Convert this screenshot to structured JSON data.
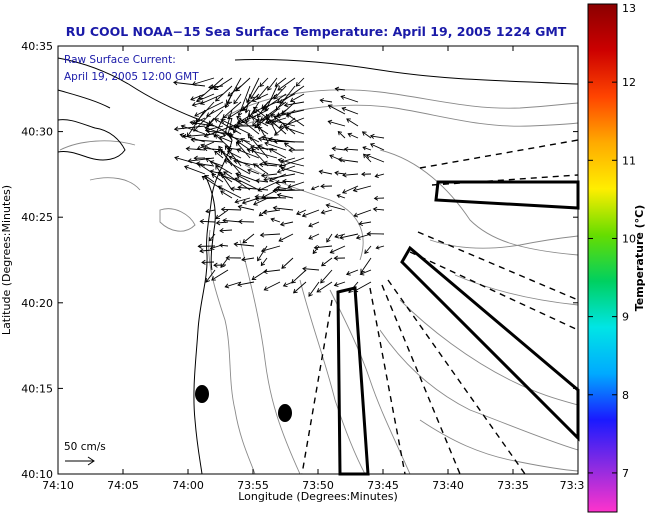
{
  "title": "RU COOL  NOAA−15  Sea Surface Temperature:  April 19, 2005 1224 GMT",
  "annotation": {
    "line1": "Raw Surface Current:",
    "line2": "April 19, 2005 12:00 GMT"
  },
  "scale_label": "50 cm/s",
  "x_axis": {
    "label": "Longitude (Degrees:Minutes)",
    "ticks": [
      "74:10",
      "74:05",
      "74:00",
      "73:55",
      "73:50",
      "73:45",
      "73:40",
      "73:35",
      "73:3"
    ]
  },
  "y_axis": {
    "label": "Latitude (Degrees:Minutes)",
    "ticks": [
      "40:35",
      "40:30",
      "40:25",
      "40:20",
      "40:15",
      "40:10"
    ]
  },
  "colorbar": {
    "label": "Temperature (°C)",
    "ticks": [
      "13",
      "12",
      "11",
      "10",
      "9",
      "8",
      "7"
    ],
    "min": 6.5,
    "max": 13,
    "colors": [
      "#ff33cc",
      "#8a2be2",
      "#1a1aff",
      "#00aaff",
      "#00e5e5",
      "#00d060",
      "#66dd00",
      "#ffee00",
      "#ffaa00",
      "#ff4400",
      "#cc0000",
      "#8b0000"
    ]
  },
  "chart_data": {
    "type": "map",
    "title": "RU COOL  NOAA−15  Sea Surface Temperature:  April 19, 2005 1224 GMT",
    "xlabel": "Longitude (Degrees:Minutes)",
    "ylabel": "Latitude (Degrees:Minutes)",
    "xlim_west_minutes": [
      4450,
      4412
    ],
    "ylim_north_minutes": [
      2410,
      2435
    ],
    "overlay": "Raw Surface Current vectors, April 19, 2005 12:00 GMT",
    "scale_vector": "50 cm/s",
    "colorbar_range_celsius": [
      6.5,
      13
    ]
  }
}
